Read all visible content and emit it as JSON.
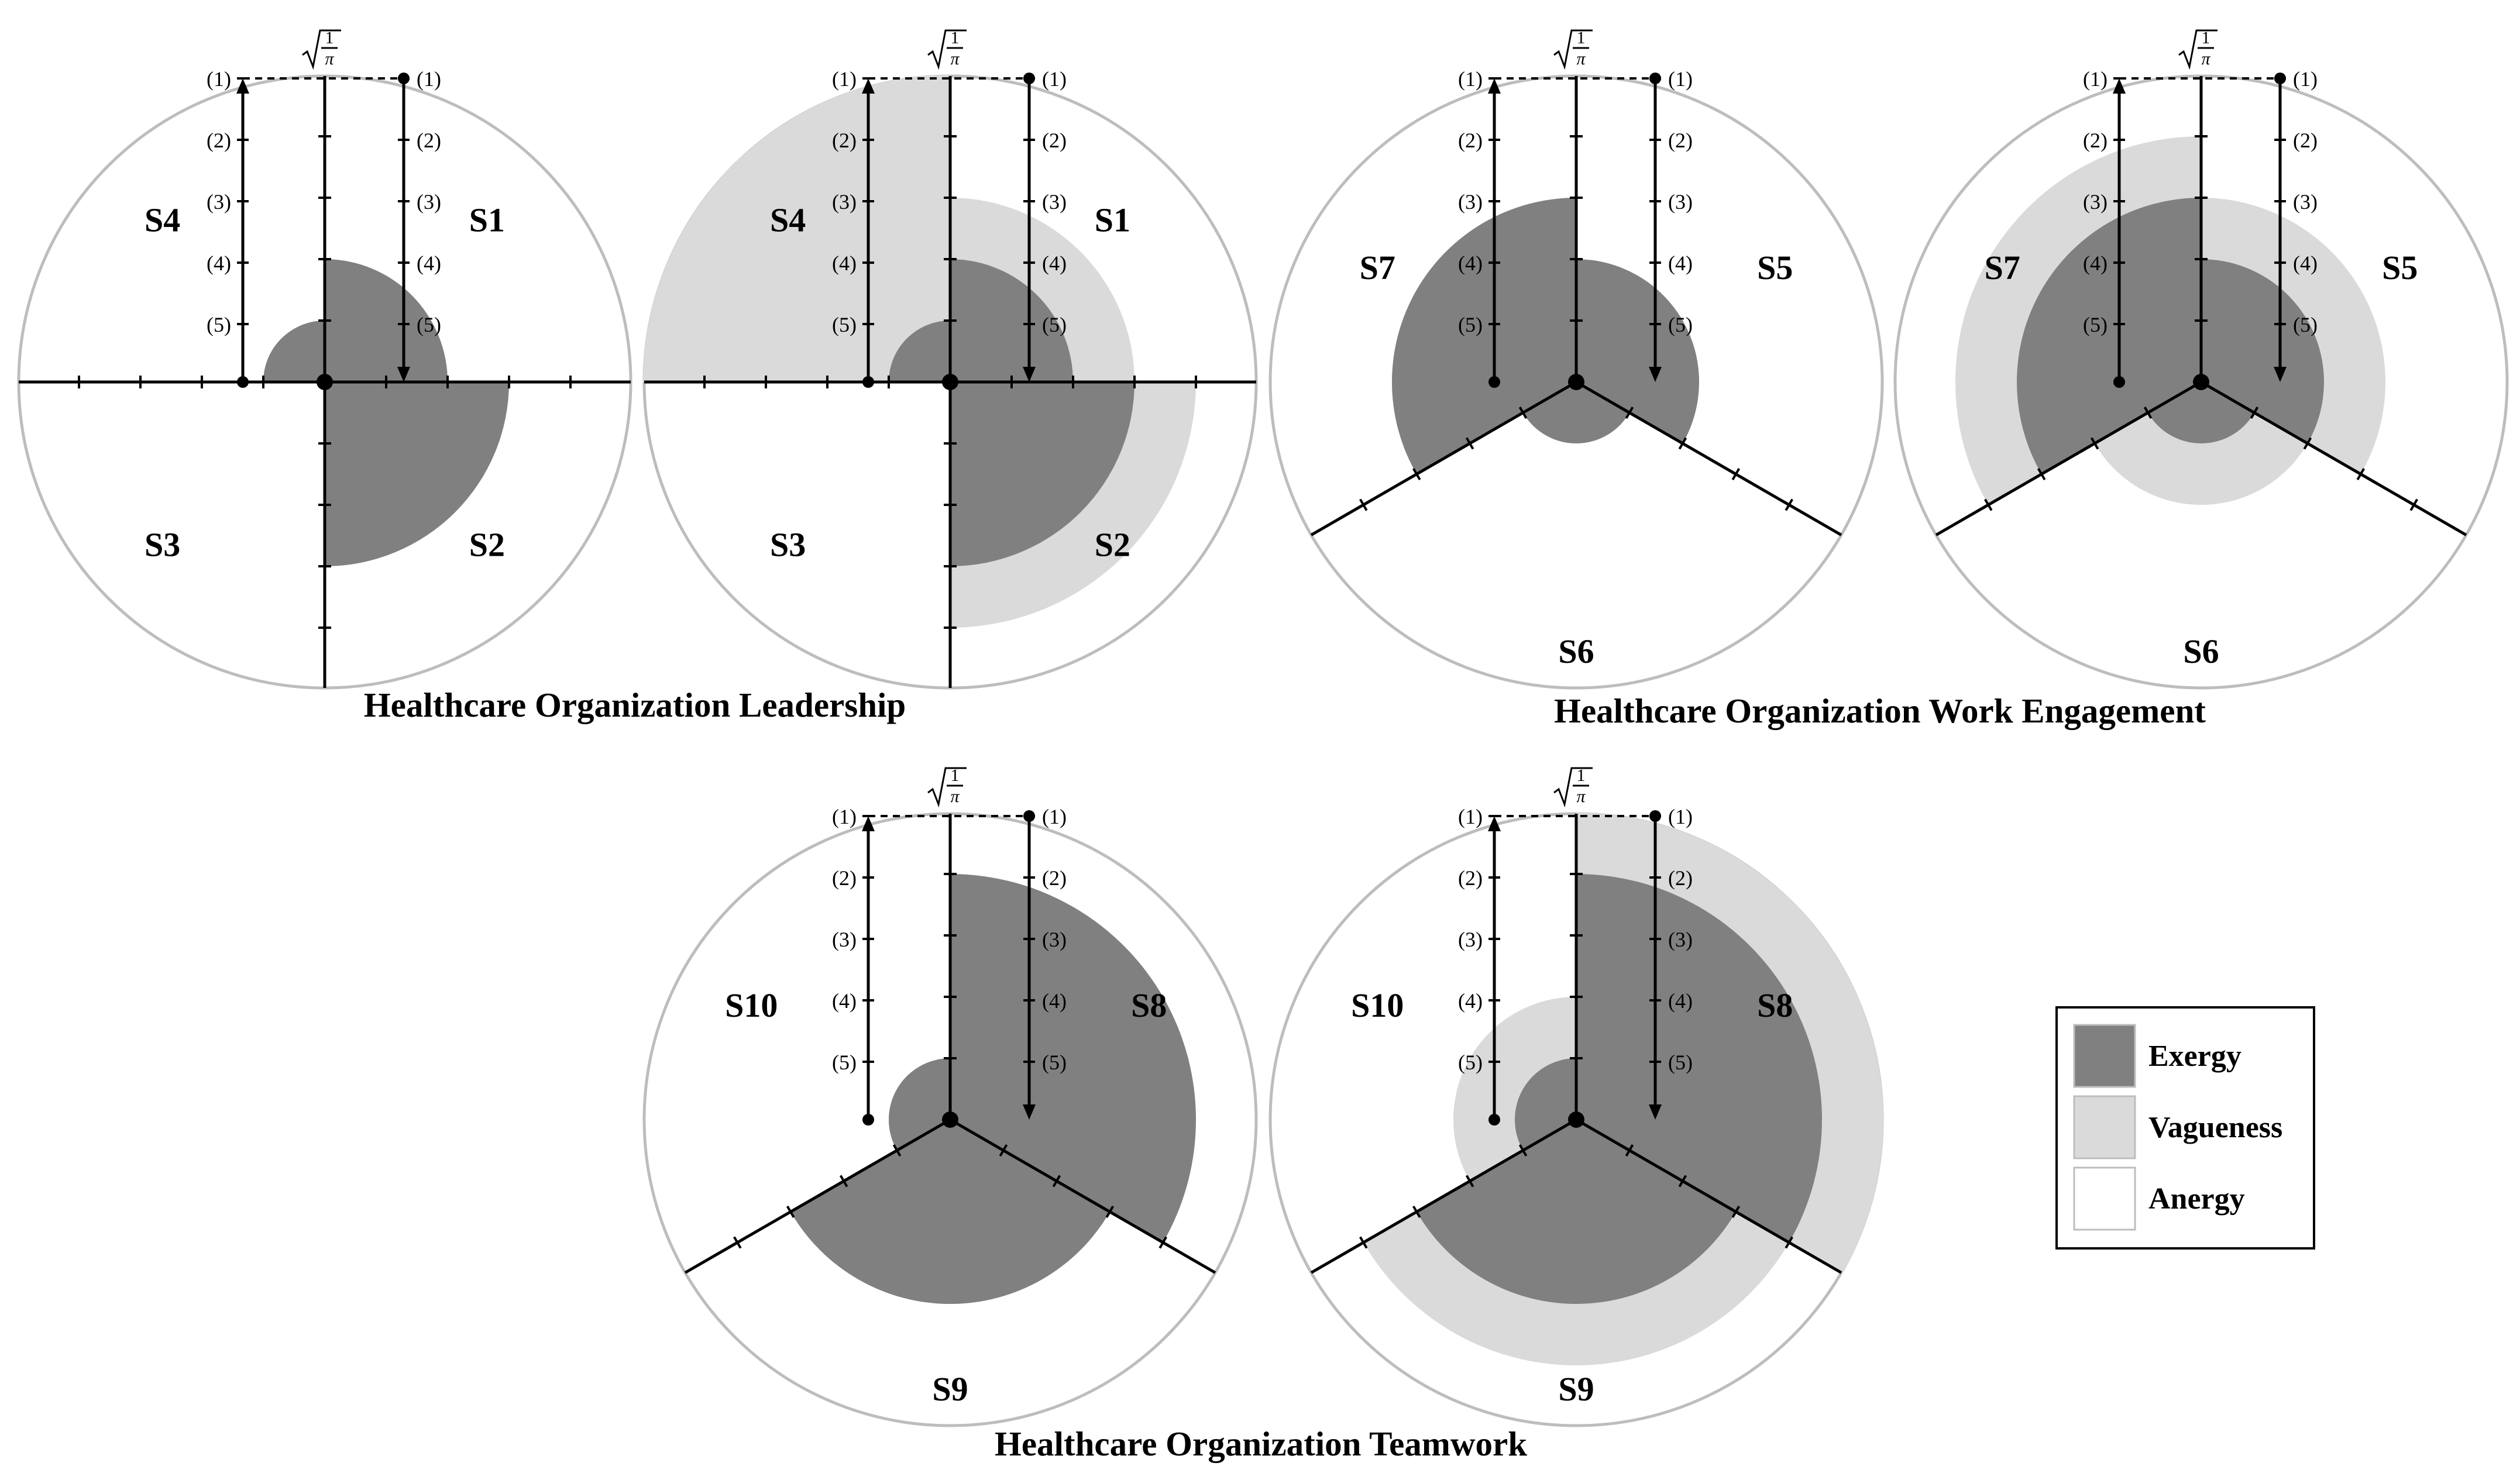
{
  "colors": {
    "exergy": "#808080",
    "vagueness": "#dadada",
    "anergy": "#ffffff",
    "circle": "#bdbdbd",
    "axis": "#000000"
  },
  "scale_label": {
    "numerator": "1",
    "symbol": "π"
  },
  "level_labels": [
    "(1)",
    "(2)",
    "(3)",
    "(4)",
    "(5)"
  ],
  "groups": [
    {
      "id": "leadership",
      "title": "Healthcare Organization Leadership"
    },
    {
      "id": "work-engagement",
      "title": "Healthcare Organization Work Engagement"
    },
    {
      "id": "teamwork",
      "title": "Healthcare Organization Teamwork"
    }
  ],
  "diagrams": [
    {
      "id": "leadership-exergy",
      "group": "leadership",
      "sectors": [
        {
          "label": "S1",
          "exergy": 2,
          "total": 2
        },
        {
          "label": "S2",
          "exergy": 3,
          "total": 3
        },
        {
          "label": "S3",
          "exergy": 0,
          "total": 0
        },
        {
          "label": "S4",
          "exergy": 1,
          "total": 1
        }
      ]
    },
    {
      "id": "leadership-vagueness",
      "group": "leadership",
      "sectors": [
        {
          "label": "S1",
          "exergy": 2,
          "total": 3
        },
        {
          "label": "S2",
          "exergy": 3,
          "total": 4
        },
        {
          "label": "S3",
          "exergy": 0,
          "total": 0
        },
        {
          "label": "S4",
          "exergy": 1,
          "total": 5
        }
      ]
    },
    {
      "id": "work-engagement-exergy",
      "group": "work-engagement",
      "sectors": [
        {
          "label": "S5",
          "exergy": 2,
          "total": 2
        },
        {
          "label": "S6",
          "exergy": 1,
          "total": 1
        },
        {
          "label": "S7",
          "exergy": 3,
          "total": 3
        }
      ]
    },
    {
      "id": "work-engagement-vagueness",
      "group": "work-engagement",
      "sectors": [
        {
          "label": "S5",
          "exergy": 2,
          "total": 3
        },
        {
          "label": "S6",
          "exergy": 1,
          "total": 2
        },
        {
          "label": "S7",
          "exergy": 3,
          "total": 4
        }
      ]
    },
    {
      "id": "teamwork-exergy",
      "group": "teamwork",
      "sectors": [
        {
          "label": "S8",
          "exergy": 4,
          "total": 4
        },
        {
          "label": "S9",
          "exergy": 3,
          "total": 3
        },
        {
          "label": "S10",
          "exergy": 1,
          "total": 1
        }
      ]
    },
    {
      "id": "teamwork-vagueness",
      "group": "teamwork",
      "sectors": [
        {
          "label": "S8",
          "exergy": 4,
          "total": 5
        },
        {
          "label": "S9",
          "exergy": 3,
          "total": 4
        },
        {
          "label": "S10",
          "exergy": 1,
          "total": 2
        }
      ]
    }
  ],
  "legend": {
    "items": [
      {
        "key": "exergy",
        "label": "Exergy"
      },
      {
        "key": "vagueness",
        "label": "Vagueness"
      },
      {
        "key": "anergy",
        "label": "Anergy"
      }
    ]
  }
}
